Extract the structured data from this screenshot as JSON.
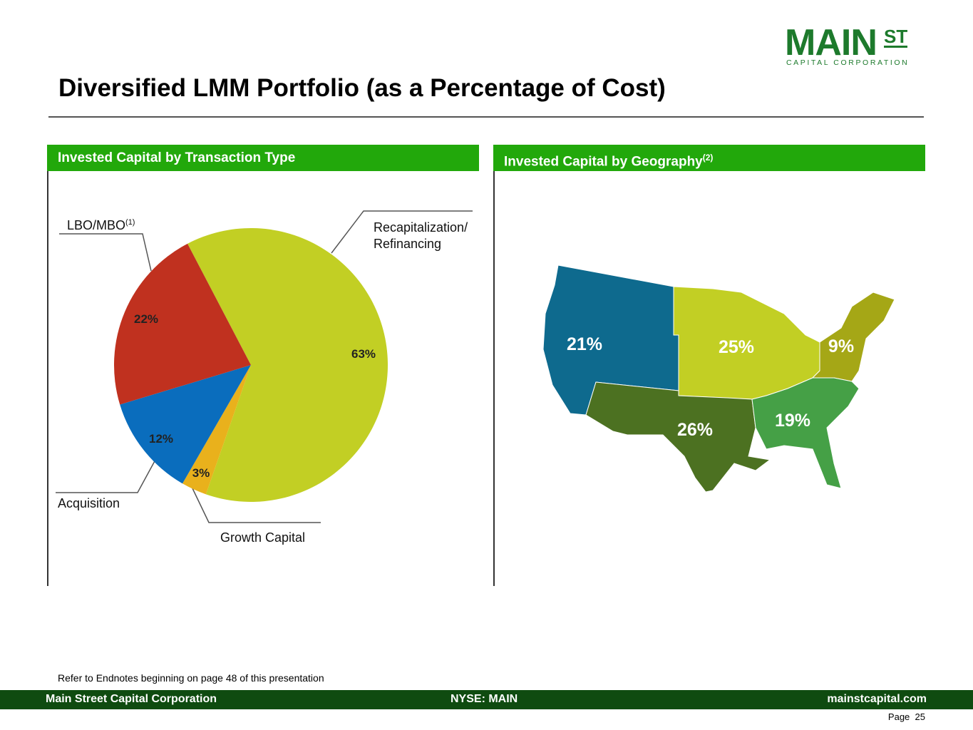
{
  "header": {
    "logo_main": "MAIN",
    "logo_st": "ST",
    "logo_sub": "CAPITAL CORPORATION",
    "title": "Diversified LMM Portfolio (as a Percentage of Cost)"
  },
  "panels": [
    {
      "title": "Invested Capital by Transaction Type"
    },
    {
      "title": "Invested Capital by Geography",
      "note": "(2)"
    }
  ],
  "chart_data": [
    {
      "type": "pie",
      "categories": [
        "Recapitalization/ Refinancing",
        "Growth Capital",
        "Acquisition",
        "LBO/MBO"
      ],
      "category_notes": {
        "3": "(1)"
      },
      "values": [
        63,
        3,
        12,
        22
      ],
      "value_labels": [
        "63%",
        "3%",
        "12%",
        "22%"
      ],
      "colors": [
        "#c2cf24",
        "#e9b11c",
        "#0a6dbd",
        "#c0311f"
      ]
    },
    {
      "type": "map",
      "values": [
        21,
        25,
        9,
        26,
        19
      ],
      "value_labels": [
        "21%",
        "25%",
        "9%",
        "26%",
        "19%"
      ],
      "colors": [
        "#0e6a8e",
        "#c2cf24",
        "#a5a716",
        "#4c7121",
        "#45a046"
      ]
    }
  ],
  "footnote": "Refer to Endnotes beginning on page 48 of this presentation",
  "footer": {
    "left": "Main Street Capital Corporation",
    "center": "NYSE: MAIN",
    "right": "mainstcapital.com",
    "page_label": "Page",
    "page_number": "25"
  }
}
